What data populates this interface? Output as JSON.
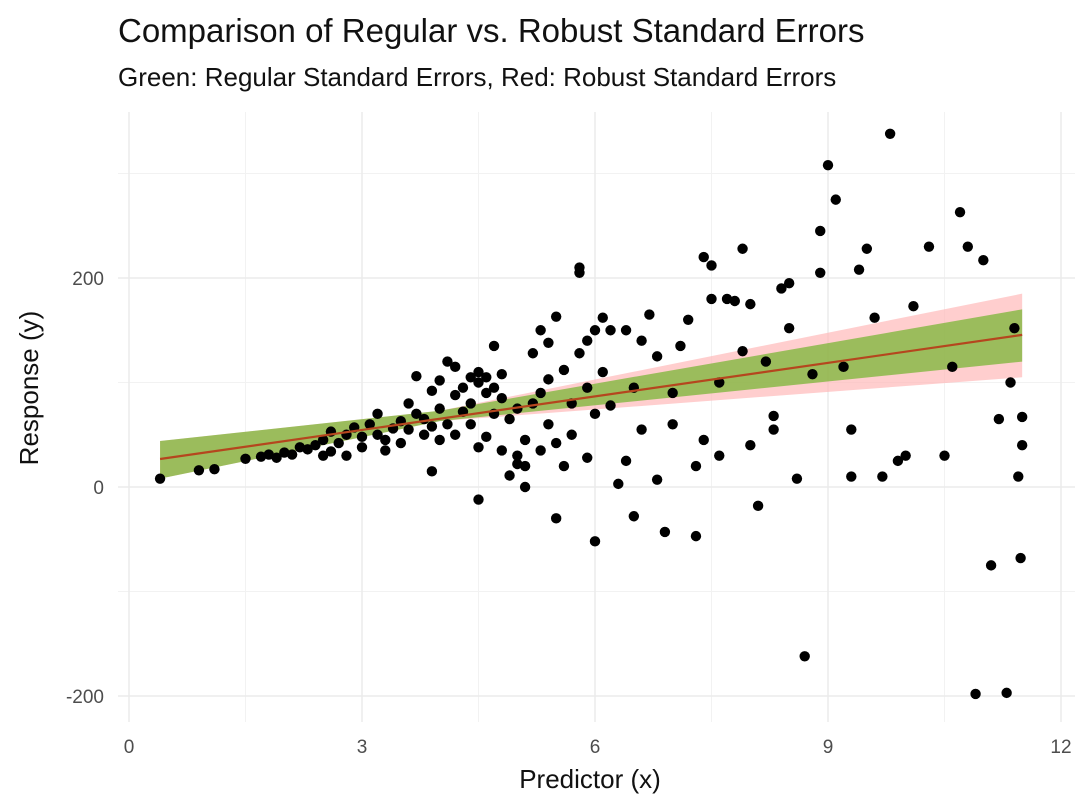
{
  "chart_data": {
    "type": "scatter",
    "title": "Comparison of Regular vs. Robust Standard Errors",
    "subtitle": "Green: Regular Standard Errors, Red: Robust Standard Errors",
    "xlabel": "Predictor (x)",
    "ylabel": "Response (y)",
    "xlim": [
      -0.1,
      12
    ],
    "ylim": [
      -215,
      335
    ],
    "x_ticks": [
      0,
      3,
      6,
      9,
      12
    ],
    "x_tick_labels": [
      "0",
      "3",
      "6",
      "9",
      "12"
    ],
    "y_ticks": [
      -200,
      0,
      200
    ],
    "y_tick_labels": [
      "-200",
      "0",
      "200"
    ],
    "grid": true,
    "legend": "none",
    "colors": {
      "points": "#000000",
      "regression_line": "#b5461e",
      "regular_band": "#66b21e",
      "robust_band": "#ffb3b3",
      "grid": "#ebebeb"
    },
    "regression": {
      "x_range": [
        0.4,
        11.5
      ],
      "intercept": 22.5,
      "slope": 10.7,
      "regular_se": {
        "x": [
          0.4,
          4.0,
          11.5
        ],
        "lower": [
          8,
          63,
          120
        ],
        "upper": [
          44,
          73,
          170
        ]
      },
      "robust_se": {
        "x": [
          0.4,
          4.0,
          11.5
        ],
        "lower": [
          8,
          63,
          105
        ],
        "upper": [
          44,
          73,
          185
        ]
      }
    },
    "points": [
      {
        "x": 0.4,
        "y": 8
      },
      {
        "x": 0.9,
        "y": 16
      },
      {
        "x": 1.1,
        "y": 17
      },
      {
        "x": 1.5,
        "y": 27
      },
      {
        "x": 1.7,
        "y": 29
      },
      {
        "x": 1.8,
        "y": 31
      },
      {
        "x": 1.9,
        "y": 28
      },
      {
        "x": 2.0,
        "y": 33
      },
      {
        "x": 2.1,
        "y": 31
      },
      {
        "x": 2.2,
        "y": 38
      },
      {
        "x": 2.3,
        "y": 36
      },
      {
        "x": 2.4,
        "y": 40
      },
      {
        "x": 2.5,
        "y": 30
      },
      {
        "x": 2.5,
        "y": 45
      },
      {
        "x": 2.6,
        "y": 53
      },
      {
        "x": 2.6,
        "y": 34
      },
      {
        "x": 2.7,
        "y": 42
      },
      {
        "x": 2.8,
        "y": 50
      },
      {
        "x": 2.8,
        "y": 30
      },
      {
        "x": 2.9,
        "y": 57
      },
      {
        "x": 3.0,
        "y": 48
      },
      {
        "x": 3.0,
        "y": 38
      },
      {
        "x": 3.1,
        "y": 60
      },
      {
        "x": 3.2,
        "y": 70
      },
      {
        "x": 3.2,
        "y": 50
      },
      {
        "x": 3.3,
        "y": 45
      },
      {
        "x": 3.3,
        "y": 35
      },
      {
        "x": 3.4,
        "y": 56
      },
      {
        "x": 3.5,
        "y": 63
      },
      {
        "x": 3.5,
        "y": 42
      },
      {
        "x": 3.6,
        "y": 55
      },
      {
        "x": 3.6,
        "y": 80
      },
      {
        "x": 3.7,
        "y": 70
      },
      {
        "x": 3.7,
        "y": 106
      },
      {
        "x": 3.8,
        "y": 50
      },
      {
        "x": 3.8,
        "y": 65
      },
      {
        "x": 3.9,
        "y": 92
      },
      {
        "x": 3.9,
        "y": 15
      },
      {
        "x": 3.9,
        "y": 58
      },
      {
        "x": 4.0,
        "y": 75
      },
      {
        "x": 4.0,
        "y": 102
      },
      {
        "x": 4.0,
        "y": 45
      },
      {
        "x": 4.1,
        "y": 120
      },
      {
        "x": 4.1,
        "y": 60
      },
      {
        "x": 4.2,
        "y": 115
      },
      {
        "x": 4.2,
        "y": 88
      },
      {
        "x": 4.2,
        "y": 50
      },
      {
        "x": 4.3,
        "y": 72
      },
      {
        "x": 4.3,
        "y": 95
      },
      {
        "x": 4.4,
        "y": 105
      },
      {
        "x": 4.4,
        "y": 80
      },
      {
        "x": 4.4,
        "y": 60
      },
      {
        "x": 4.5,
        "y": 100
      },
      {
        "x": 4.5,
        "y": 110
      },
      {
        "x": 4.5,
        "y": 38
      },
      {
        "x": 4.5,
        "y": -12
      },
      {
        "x": 4.6,
        "y": 90
      },
      {
        "x": 4.6,
        "y": 105
      },
      {
        "x": 4.6,
        "y": 48
      },
      {
        "x": 4.7,
        "y": 95
      },
      {
        "x": 4.7,
        "y": 135
      },
      {
        "x": 4.7,
        "y": 70
      },
      {
        "x": 4.8,
        "y": 85
      },
      {
        "x": 4.8,
        "y": 108
      },
      {
        "x": 4.8,
        "y": 35
      },
      {
        "x": 4.9,
        "y": 65
      },
      {
        "x": 4.9,
        "y": 11
      },
      {
        "x": 5.0,
        "y": 30
      },
      {
        "x": 5.0,
        "y": 75
      },
      {
        "x": 5.0,
        "y": 22
      },
      {
        "x": 5.1,
        "y": 45
      },
      {
        "x": 5.1,
        "y": 20
      },
      {
        "x": 5.1,
        "y": 0
      },
      {
        "x": 5.2,
        "y": 80
      },
      {
        "x": 5.2,
        "y": 128
      },
      {
        "x": 5.3,
        "y": 150
      },
      {
        "x": 5.3,
        "y": 90
      },
      {
        "x": 5.3,
        "y": 35
      },
      {
        "x": 5.4,
        "y": 103
      },
      {
        "x": 5.4,
        "y": 60
      },
      {
        "x": 5.4,
        "y": 138
      },
      {
        "x": 5.5,
        "y": 163
      },
      {
        "x": 5.5,
        "y": 42
      },
      {
        "x": 5.5,
        "y": -30
      },
      {
        "x": 5.6,
        "y": 112
      },
      {
        "x": 5.6,
        "y": 20
      },
      {
        "x": 5.7,
        "y": 80
      },
      {
        "x": 5.7,
        "y": 50
      },
      {
        "x": 5.8,
        "y": 210
      },
      {
        "x": 5.8,
        "y": 205
      },
      {
        "x": 5.8,
        "y": 128
      },
      {
        "x": 5.9,
        "y": 140
      },
      {
        "x": 5.9,
        "y": 95
      },
      {
        "x": 5.9,
        "y": 28
      },
      {
        "x": 6.0,
        "y": 150
      },
      {
        "x": 6.0,
        "y": 70
      },
      {
        "x": 6.0,
        "y": -52
      },
      {
        "x": 6.1,
        "y": 162
      },
      {
        "x": 6.1,
        "y": 110
      },
      {
        "x": 6.2,
        "y": 150
      },
      {
        "x": 6.2,
        "y": 78
      },
      {
        "x": 6.3,
        "y": 3
      },
      {
        "x": 6.4,
        "y": 150
      },
      {
        "x": 6.4,
        "y": 25
      },
      {
        "x": 6.5,
        "y": -28
      },
      {
        "x": 6.5,
        "y": 95
      },
      {
        "x": 6.6,
        "y": 140
      },
      {
        "x": 6.6,
        "y": 55
      },
      {
        "x": 6.7,
        "y": 165
      },
      {
        "x": 6.8,
        "y": 125
      },
      {
        "x": 6.8,
        "y": 7
      },
      {
        "x": 6.9,
        "y": -43
      },
      {
        "x": 7.0,
        "y": 90
      },
      {
        "x": 7.0,
        "y": 60
      },
      {
        "x": 7.1,
        "y": 135
      },
      {
        "x": 7.2,
        "y": 160
      },
      {
        "x": 7.3,
        "y": 20
      },
      {
        "x": 7.3,
        "y": -47
      },
      {
        "x": 7.4,
        "y": 220
      },
      {
        "x": 7.4,
        "y": 45
      },
      {
        "x": 7.5,
        "y": 180
      },
      {
        "x": 7.5,
        "y": 212
      },
      {
        "x": 7.6,
        "y": 100
      },
      {
        "x": 7.6,
        "y": 30
      },
      {
        "x": 7.7,
        "y": 180
      },
      {
        "x": 7.8,
        "y": 178
      },
      {
        "x": 7.9,
        "y": 228
      },
      {
        "x": 7.9,
        "y": 130
      },
      {
        "x": 8.0,
        "y": 175
      },
      {
        "x": 8.0,
        "y": 40
      },
      {
        "x": 8.1,
        "y": -18
      },
      {
        "x": 8.2,
        "y": 120
      },
      {
        "x": 8.3,
        "y": 55
      },
      {
        "x": 8.3,
        "y": 68
      },
      {
        "x": 8.4,
        "y": 190
      },
      {
        "x": 8.5,
        "y": 195
      },
      {
        "x": 8.5,
        "y": 152
      },
      {
        "x": 8.6,
        "y": 8
      },
      {
        "x": 8.7,
        "y": -162
      },
      {
        "x": 8.8,
        "y": 108
      },
      {
        "x": 8.9,
        "y": 205
      },
      {
        "x": 8.9,
        "y": 245
      },
      {
        "x": 9.0,
        "y": 308
      },
      {
        "x": 9.1,
        "y": 275
      },
      {
        "x": 9.2,
        "y": 115
      },
      {
        "x": 9.3,
        "y": 55
      },
      {
        "x": 9.3,
        "y": 10
      },
      {
        "x": 9.4,
        "y": 208
      },
      {
        "x": 9.5,
        "y": 228
      },
      {
        "x": 9.6,
        "y": 162
      },
      {
        "x": 9.7,
        "y": 10
      },
      {
        "x": 9.8,
        "y": 338
      },
      {
        "x": 9.9,
        "y": 25
      },
      {
        "x": 10.0,
        "y": 30
      },
      {
        "x": 10.1,
        "y": 173
      },
      {
        "x": 10.3,
        "y": 230
      },
      {
        "x": 10.5,
        "y": 30
      },
      {
        "x": 10.6,
        "y": 115
      },
      {
        "x": 10.7,
        "y": 263
      },
      {
        "x": 10.8,
        "y": 230
      },
      {
        "x": 10.9,
        "y": -198
      },
      {
        "x": 11.0,
        "y": 217
      },
      {
        "x": 11.1,
        "y": -75
      },
      {
        "x": 11.2,
        "y": 65
      },
      {
        "x": 11.3,
        "y": -197
      },
      {
        "x": 11.35,
        "y": 100
      },
      {
        "x": 11.4,
        "y": 152
      },
      {
        "x": 11.45,
        "y": 10
      },
      {
        "x": 11.5,
        "y": 40
      },
      {
        "x": 11.5,
        "y": 67
      },
      {
        "x": 11.48,
        "y": -68
      }
    ]
  }
}
